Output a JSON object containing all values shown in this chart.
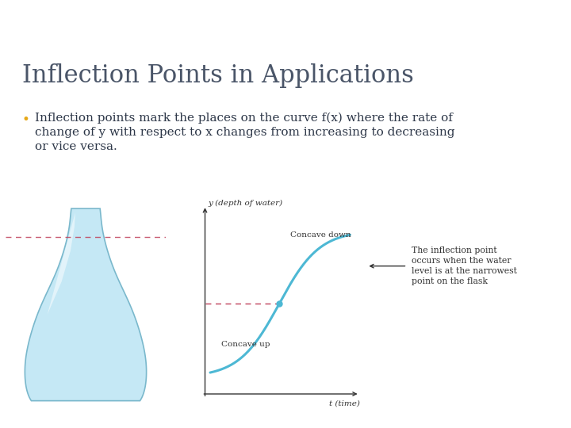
{
  "title": "Inflection Points in Applications",
  "title_color": "#4a5568",
  "title_fontsize": 22,
  "bullet_color": "#2d3748",
  "bullet_fontsize": 11,
  "bullet_marker_color": "#e6a817",
  "header_bar_color": "#4a5568",
  "accent_bar_color": "#d63384",
  "accent_bar2_color": "#f0a0c0",
  "bg_color": "#ffffff",
  "curve_color": "#4db8d4",
  "curve_linewidth": 2.2,
  "dashed_line_color": "#c0405a",
  "axis_color": "#333333",
  "inflection_point_color": "#4db8d4",
  "concave_up_label": "Concave up",
  "concave_down_label": "Concave down",
  "ylabel": "y (depth of water)",
  "xlabel": "t (time)",
  "annotation_text": "The inflection point\noccurs when the water\nlevel is at the narrowest\npoint on the flask",
  "flask_fill_color": "#c5e8f5",
  "flask_highlight_color": "#e8f6fc"
}
